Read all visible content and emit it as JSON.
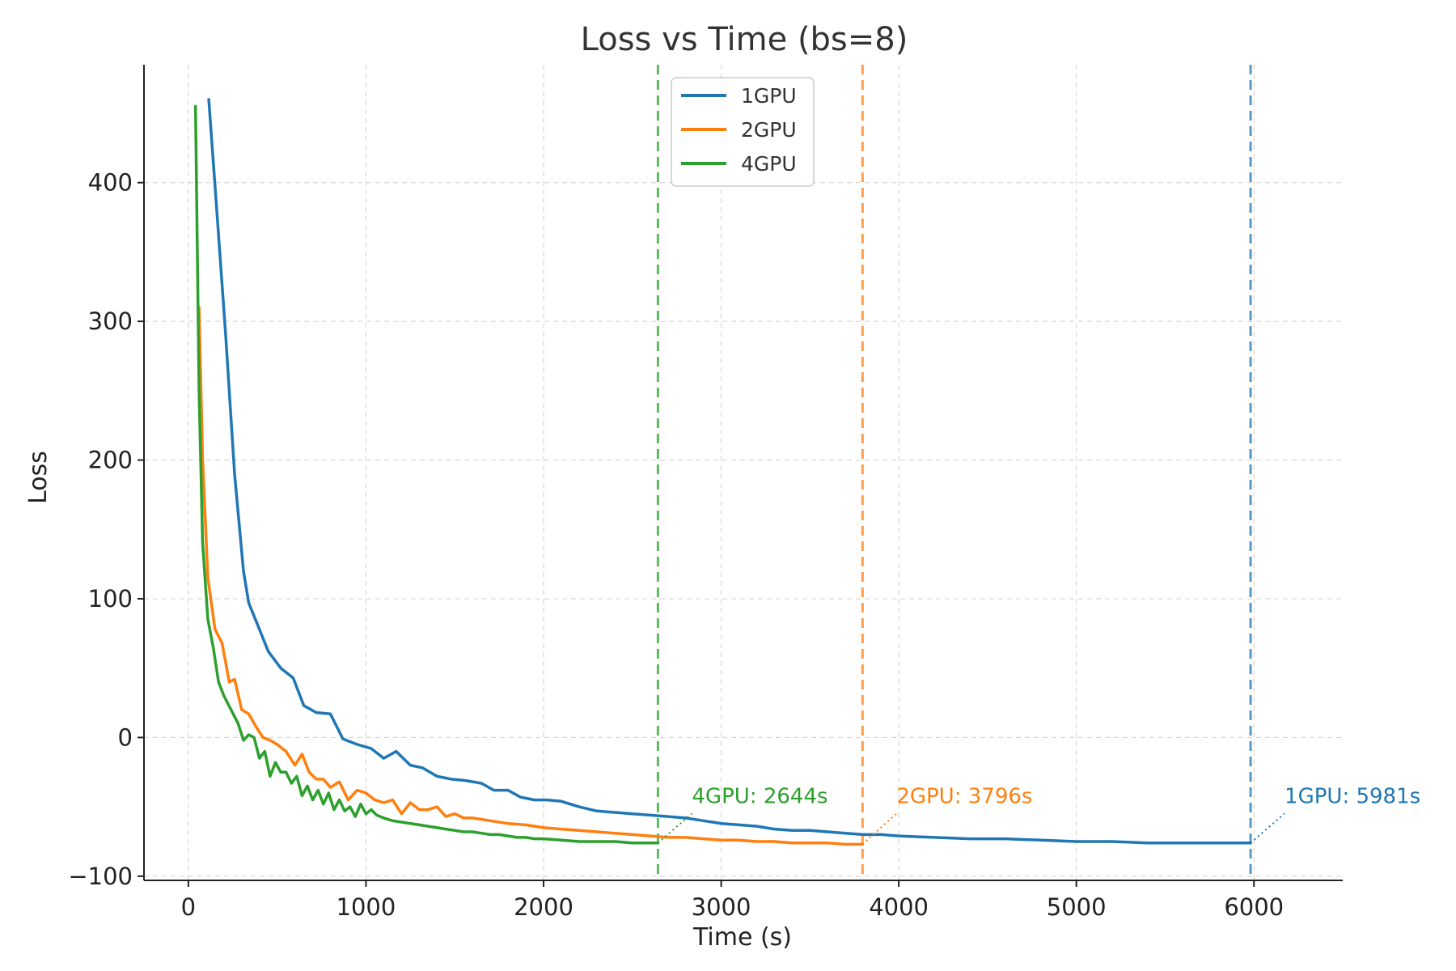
{
  "chart_data": {
    "type": "line",
    "title": "Loss vs Time (bs=8)",
    "xlabel": "Time (s)",
    "ylabel": "Loss",
    "xlim": [
      -250,
      6500
    ],
    "ylim": [
      -103,
      485
    ],
    "x_ticks": [
      0,
      1000,
      2000,
      3000,
      4000,
      5000,
      6000
    ],
    "x_tick_labels": [
      "0",
      "1000",
      "2000",
      "3000",
      "4000",
      "5000",
      "6000"
    ],
    "y_ticks": [
      -100,
      0,
      100,
      200,
      300,
      400
    ],
    "y_tick_labels": [
      "−100",
      "0",
      "100",
      "200",
      "300",
      "400"
    ],
    "grid": true,
    "legend_position": "top-center",
    "series": [
      {
        "name": "1GPU",
        "color": "#1f77b4",
        "x": [
          115,
          160,
          210,
          260,
          310,
          340,
          400,
          450,
          520,
          590,
          650,
          720,
          800,
          870,
          950,
          1030,
          1100,
          1170,
          1250,
          1320,
          1400,
          1480,
          1560,
          1650,
          1720,
          1800,
          1870,
          1950,
          2020,
          2100,
          2200,
          2300,
          2400,
          2500,
          2600,
          2700,
          2800,
          2900,
          3000,
          3100,
          3200,
          3300,
          3400,
          3500,
          3600,
          3700,
          3800,
          3900,
          4000,
          4200,
          4400,
          4600,
          4800,
          5000,
          5200,
          5400,
          5600,
          5800,
          5981
        ],
        "y": [
          460,
          380,
          290,
          190,
          120,
          97,
          78,
          62,
          50,
          43,
          23,
          18,
          17,
          -1,
          -5,
          -8,
          -15,
          -10,
          -20,
          -22,
          -28,
          -30,
          -31,
          -33,
          -38,
          -38,
          -43,
          -45,
          -45,
          -46,
          -50,
          -53,
          -54,
          -55,
          -56,
          -57,
          -58,
          -60,
          -62,
          -63,
          -64,
          -66,
          -67,
          -67,
          -68,
          -69,
          -70,
          -70,
          -71,
          -72,
          -73,
          -73,
          -74,
          -75,
          -75,
          -76,
          -76,
          -76,
          -76
        ]
      },
      {
        "name": "2GPU",
        "color": "#ff7f0e",
        "x": [
          60,
          80,
          110,
          150,
          190,
          230,
          260,
          300,
          340,
          380,
          420,
          460,
          500,
          550,
          600,
          640,
          680,
          720,
          760,
          800,
          850,
          900,
          950,
          1000,
          1050,
          1100,
          1150,
          1200,
          1250,
          1300,
          1350,
          1400,
          1450,
          1500,
          1550,
          1600,
          1700,
          1800,
          1900,
          2000,
          2100,
          2200,
          2300,
          2400,
          2500,
          2600,
          2700,
          2800,
          2900,
          3000,
          3100,
          3200,
          3300,
          3400,
          3500,
          3600,
          3700,
          3796
        ],
        "y": [
          310,
          200,
          115,
          78,
          68,
          40,
          42,
          20,
          17,
          8,
          0,
          -2,
          -5,
          -10,
          -20,
          -12,
          -25,
          -30,
          -30,
          -36,
          -32,
          -45,
          -38,
          -40,
          -45,
          -47,
          -45,
          -55,
          -47,
          -52,
          -52,
          -50,
          -57,
          -55,
          -58,
          -58,
          -60,
          -62,
          -63,
          -65,
          -66,
          -67,
          -68,
          -69,
          -70,
          -71,
          -72,
          -72,
          -73,
          -74,
          -74,
          -75,
          -75,
          -76,
          -76,
          -76,
          -77,
          -77
        ]
      },
      {
        "name": "4GPU",
        "color": "#2ca02c",
        "x": [
          40,
          60,
          80,
          110,
          140,
          170,
          200,
          240,
          280,
          310,
          340,
          370,
          400,
          430,
          460,
          490,
          520,
          550,
          580,
          610,
          640,
          670,
          700,
          730,
          760,
          790,
          820,
          850,
          880,
          910,
          940,
          970,
          1000,
          1030,
          1060,
          1100,
          1150,
          1200,
          1250,
          1300,
          1350,
          1400,
          1450,
          1500,
          1550,
          1600,
          1650,
          1700,
          1750,
          1800,
          1850,
          1900,
          1950,
          2000,
          2100,
          2200,
          2300,
          2400,
          2500,
          2600,
          2644
        ],
        "y": [
          455,
          250,
          140,
          85,
          65,
          40,
          30,
          20,
          10,
          -2,
          2,
          0,
          -15,
          -10,
          -28,
          -18,
          -25,
          -25,
          -33,
          -28,
          -42,
          -35,
          -45,
          -38,
          -48,
          -40,
          -52,
          -45,
          -53,
          -50,
          -57,
          -48,
          -55,
          -52,
          -56,
          -58,
          -60,
          -61,
          -62,
          -63,
          -64,
          -65,
          -66,
          -67,
          -68,
          -68,
          -69,
          -70,
          -70,
          -71,
          -72,
          -72,
          -73,
          -73,
          -74,
          -75,
          -75,
          -75,
          -76,
          -76,
          -76
        ]
      }
    ],
    "markers": [
      {
        "name": "4GPU",
        "x": 2644,
        "y": -76,
        "label": "4GPU: 2644s",
        "color": "#2ca02c"
      },
      {
        "name": "2GPU",
        "x": 3796,
        "y": -77,
        "label": "2GPU: 3796s",
        "color": "#ff7f0e"
      },
      {
        "name": "1GPU",
        "x": 5981,
        "y": -76,
        "label": "1GPU: 5981s",
        "color": "#1f77b4"
      }
    ]
  }
}
